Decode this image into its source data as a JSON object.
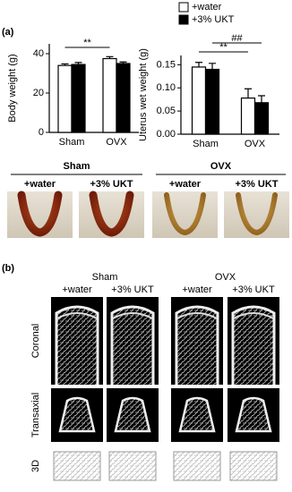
{
  "figure": {
    "panel_a": "(a)",
    "panel_b": "(b)",
    "photos": {
      "groups": [
        "Sham",
        "OVX"
      ],
      "treatments": [
        "+water",
        "+3% UKT",
        "+water",
        "+3% UKT"
      ]
    },
    "ct": {
      "groups": [
        "Sham",
        "OVX"
      ],
      "treatments": [
        "+water",
        "+3% UKT",
        "+water",
        "+3% UKT"
      ],
      "views": [
        "Coronal",
        "Transaxial",
        "3D"
      ]
    }
  },
  "chart_data": [
    {
      "type": "bar",
      "y_label": "Body weight (g)",
      "categories": [
        "Sham",
        "OVX"
      ],
      "series": [
        {
          "color": "#ffffff",
          "values": [
            34,
            37.5
          ],
          "errors": [
            0.8,
            1
          ]
        },
        {
          "color": "#000000",
          "values": [
            34.5,
            35
          ],
          "errors": [
            1,
            0.8
          ]
        }
      ],
      "ylim": [
        0,
        45
      ],
      "yticks": [
        0,
        20,
        40
      ],
      "annotations": [
        "**"
      ]
    },
    {
      "type": "bar",
      "y_label": "Uterus wet weight (g)",
      "categories": [
        "Sham",
        "OVX"
      ],
      "series": [
        {
          "name": "+water",
          "color": "#ffffff",
          "values": [
            0.145,
            0.078
          ],
          "errors": [
            0.01,
            0.02
          ]
        },
        {
          "name": "+3% UKT",
          "color": "#000000",
          "values": [
            0.14,
            0.068
          ],
          "errors": [
            0.013,
            0.015
          ]
        }
      ],
      "ylim": [
        0,
        0.17
      ],
      "yticks": [
        {
          "value": 0,
          "label": "0.00"
        },
        {
          "value": 0.05,
          "label": "0.05"
        },
        {
          "value": 0.1,
          "label": "0.10"
        },
        {
          "value": 0.15,
          "label": "0.15"
        }
      ],
      "annotations": [
        "**",
        "##"
      ]
    }
  ]
}
